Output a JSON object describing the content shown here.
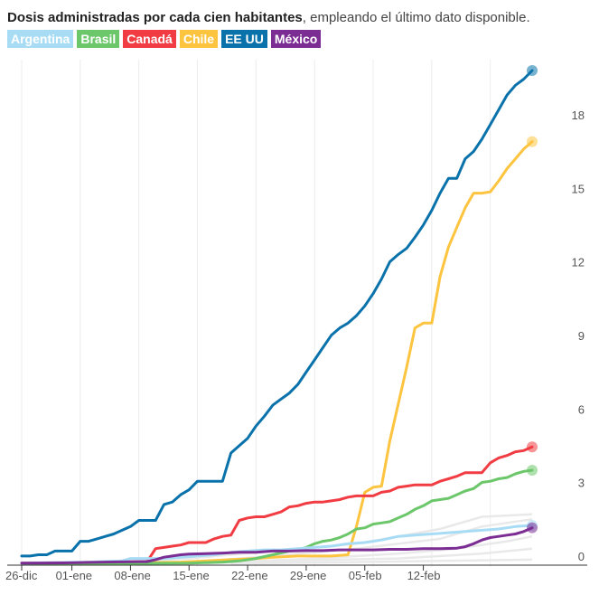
{
  "header": {
    "title": "Dosis administradas por cada cien habitantes",
    "subtitle": ", empleando el último dato disponible."
  },
  "legend": [
    {
      "name": "Argentina",
      "color": "#a8dcf5"
    },
    {
      "name": "Brasil",
      "color": "#6cc66a"
    },
    {
      "name": "Canadá",
      "color": "#f03c42"
    },
    {
      "name": "Chile",
      "color": "#fdc43f"
    },
    {
      "name": "EE UU",
      "color": "#0a72ab"
    },
    {
      "name": "México",
      "color": "#7b2d93"
    }
  ],
  "chart_data": {
    "type": "line",
    "x_ticks": [
      "26-dic",
      "01-ene",
      "08-ene",
      "15-ene",
      "22-ene",
      "29-ene",
      "05-feb",
      "12-feb"
    ],
    "x_tick_days": [
      0,
      6,
      13,
      20,
      27,
      34,
      41,
      48
    ],
    "ylim": [
      0,
      19.5
    ],
    "y_ticks": [
      "0",
      "3",
      "6",
      "9",
      "12",
      "15",
      "18"
    ],
    "y_tick_values": [
      0,
      3,
      6,
      9,
      12,
      15,
      18
    ],
    "grid": "vertical",
    "background_series_color": "#e9e9e9",
    "background_series": [
      [
        [
          10,
          0
        ],
        [
          20,
          0.2
        ],
        [
          30,
          0.5
        ],
        [
          40,
          0.8
        ],
        [
          50,
          1.4
        ],
        [
          55,
          1.9
        ],
        [
          61,
          2.0
        ]
      ],
      [
        [
          18,
          0
        ],
        [
          30,
          0.3
        ],
        [
          40,
          0.6
        ],
        [
          50,
          1.0
        ],
        [
          55,
          1.5
        ],
        [
          61,
          1.8
        ]
      ],
      [
        [
          22,
          0
        ],
        [
          35,
          0.2
        ],
        [
          45,
          0.4
        ],
        [
          52,
          0.6
        ],
        [
          58,
          0.9
        ],
        [
          61,
          1.1
        ]
      ],
      [
        [
          15,
          0
        ],
        [
          30,
          0.1
        ],
        [
          45,
          0.2
        ],
        [
          55,
          0.4
        ],
        [
          61,
          0.6
        ]
      ],
      [
        [
          25,
          0
        ],
        [
          40,
          0.05
        ],
        [
          50,
          0.1
        ],
        [
          61,
          0.15
        ]
      ]
    ],
    "series": [
      {
        "name": "EE UU",
        "color": "#0a72ab",
        "points": [
          [
            0,
            0.3
          ],
          [
            1,
            0.3
          ],
          [
            2,
            0.35
          ],
          [
            3,
            0.35
          ],
          [
            4,
            0.5
          ],
          [
            5,
            0.5
          ],
          [
            6,
            0.5
          ],
          [
            7,
            0.9
          ],
          [
            8,
            0.9
          ],
          [
            9,
            1.0
          ],
          [
            10,
            1.1
          ],
          [
            11,
            1.2
          ],
          [
            12,
            1.35
          ],
          [
            13,
            1.5
          ],
          [
            14,
            1.75
          ],
          [
            15,
            1.75
          ],
          [
            16,
            1.75
          ],
          [
            17,
            2.4
          ],
          [
            18,
            2.5
          ],
          [
            19,
            2.8
          ],
          [
            20,
            3.0
          ],
          [
            21,
            3.35
          ],
          [
            22,
            3.35
          ],
          [
            23,
            3.35
          ],
          [
            24,
            3.35
          ],
          [
            25,
            4.5
          ],
          [
            26,
            4.8
          ],
          [
            27,
            5.1
          ],
          [
            28,
            5.6
          ],
          [
            29,
            6.0
          ],
          [
            30,
            6.45
          ],
          [
            31,
            6.7
          ],
          [
            32,
            6.95
          ],
          [
            33,
            7.3
          ],
          [
            34,
            7.8
          ],
          [
            35,
            8.3
          ],
          [
            36,
            8.8
          ],
          [
            37,
            9.3
          ],
          [
            38,
            9.6
          ],
          [
            39,
            9.8
          ],
          [
            40,
            10.1
          ],
          [
            41,
            10.5
          ],
          [
            42,
            11.0
          ],
          [
            43,
            11.6
          ],
          [
            44,
            12.3
          ],
          [
            45,
            12.6
          ],
          [
            46,
            12.85
          ],
          [
            47,
            13.3
          ],
          [
            48,
            13.8
          ],
          [
            49,
            14.4
          ],
          [
            50,
            15.1
          ],
          [
            51,
            15.7
          ],
          [
            52,
            15.7
          ],
          [
            53,
            16.5
          ],
          [
            54,
            16.8
          ],
          [
            55,
            17.3
          ],
          [
            56,
            17.9
          ],
          [
            57,
            18.5
          ],
          [
            58,
            19.1
          ],
          [
            59,
            19.5
          ],
          [
            60,
            19.75
          ],
          [
            61,
            20.1
          ]
        ]
      },
      {
        "name": "Chile",
        "color": "#fdc43f",
        "points": [
          [
            0,
            0.01
          ],
          [
            5,
            0.02
          ],
          [
            10,
            0.03
          ],
          [
            15,
            0.03
          ],
          [
            19,
            0.05
          ],
          [
            22,
            0.1
          ],
          [
            25,
            0.15
          ],
          [
            28,
            0.2
          ],
          [
            30,
            0.25
          ],
          [
            33,
            0.3
          ],
          [
            35,
            0.3
          ],
          [
            37,
            0.3
          ],
          [
            39,
            0.35
          ],
          [
            40,
            1.5
          ],
          [
            41,
            2.9
          ],
          [
            42,
            3.1
          ],
          [
            43,
            3.15
          ],
          [
            44,
            5.0
          ],
          [
            45,
            6.5
          ],
          [
            46,
            8.0
          ],
          [
            47,
            9.6
          ],
          [
            48,
            9.8
          ],
          [
            49,
            9.8
          ],
          [
            50,
            11.7
          ],
          [
            51,
            12.9
          ],
          [
            52,
            13.7
          ],
          [
            53,
            14.5
          ],
          [
            54,
            15.1
          ],
          [
            55,
            15.1
          ],
          [
            56,
            15.15
          ],
          [
            57,
            15.6
          ],
          [
            58,
            16.1
          ],
          [
            59,
            16.5
          ],
          [
            60,
            16.9
          ],
          [
            61,
            17.2
          ]
        ]
      },
      {
        "name": "Canadá",
        "color": "#f03c42",
        "points": [
          [
            0,
            0.01
          ],
          [
            5,
            0.03
          ],
          [
            10,
            0.05
          ],
          [
            15,
            0.07
          ],
          [
            16,
            0.6
          ],
          [
            17,
            0.65
          ],
          [
            18,
            0.7
          ],
          [
            19,
            0.75
          ],
          [
            20,
            0.85
          ],
          [
            21,
            0.85
          ],
          [
            22,
            0.85
          ],
          [
            23,
            1.0
          ],
          [
            24,
            1.1
          ],
          [
            25,
            1.15
          ],
          [
            26,
            1.75
          ],
          [
            27,
            1.85
          ],
          [
            28,
            1.9
          ],
          [
            29,
            1.9
          ],
          [
            30,
            2.0
          ],
          [
            31,
            2.1
          ],
          [
            32,
            2.3
          ],
          [
            33,
            2.35
          ],
          [
            34,
            2.45
          ],
          [
            35,
            2.5
          ],
          [
            36,
            2.5
          ],
          [
            37,
            2.55
          ],
          [
            38,
            2.6
          ],
          [
            39,
            2.7
          ],
          [
            40,
            2.75
          ],
          [
            41,
            2.75
          ],
          [
            42,
            2.75
          ],
          [
            43,
            2.9
          ],
          [
            44,
            2.95
          ],
          [
            45,
            3.1
          ],
          [
            46,
            3.15
          ],
          [
            47,
            3.2
          ],
          [
            48,
            3.2
          ],
          [
            49,
            3.2
          ],
          [
            50,
            3.35
          ],
          [
            51,
            3.45
          ],
          [
            52,
            3.55
          ],
          [
            53,
            3.7
          ],
          [
            54,
            3.7
          ],
          [
            55,
            3.7
          ],
          [
            56,
            4.1
          ],
          [
            57,
            4.3
          ],
          [
            58,
            4.4
          ],
          [
            59,
            4.55
          ],
          [
            60,
            4.6
          ],
          [
            61,
            4.75
          ]
        ]
      },
      {
        "name": "Brasil",
        "color": "#6cc66a",
        "points": [
          [
            0,
            0
          ],
          [
            15,
            0
          ],
          [
            20,
            0.01
          ],
          [
            24,
            0.05
          ],
          [
            26,
            0.1
          ],
          [
            28,
            0.2
          ],
          [
            30,
            0.35
          ],
          [
            32,
            0.5
          ],
          [
            33,
            0.55
          ],
          [
            34,
            0.65
          ],
          [
            35,
            0.8
          ],
          [
            36,
            0.9
          ],
          [
            37,
            0.95
          ],
          [
            38,
            1.05
          ],
          [
            39,
            1.2
          ],
          [
            40,
            1.4
          ],
          [
            41,
            1.45
          ],
          [
            42,
            1.6
          ],
          [
            43,
            1.65
          ],
          [
            44,
            1.7
          ],
          [
            45,
            1.85
          ],
          [
            46,
            2.0
          ],
          [
            47,
            2.2
          ],
          [
            48,
            2.35
          ],
          [
            49,
            2.55
          ],
          [
            50,
            2.6
          ],
          [
            51,
            2.65
          ],
          [
            52,
            2.8
          ],
          [
            53,
            2.95
          ],
          [
            54,
            3.05
          ],
          [
            55,
            3.3
          ],
          [
            56,
            3.35
          ],
          [
            57,
            3.45
          ],
          [
            58,
            3.5
          ],
          [
            59,
            3.65
          ],
          [
            60,
            3.75
          ],
          [
            61,
            3.8
          ]
        ]
      },
      {
        "name": "Argentina",
        "color": "#a8dcf5",
        "points": [
          [
            0,
            0.01
          ],
          [
            8,
            0.05
          ],
          [
            12,
            0.1
          ],
          [
            13,
            0.2
          ],
          [
            15,
            0.2
          ],
          [
            17,
            0.2
          ],
          [
            19,
            0.25
          ],
          [
            21,
            0.3
          ],
          [
            23,
            0.35
          ],
          [
            25,
            0.45
          ],
          [
            27,
            0.5
          ],
          [
            29,
            0.55
          ],
          [
            31,
            0.55
          ],
          [
            33,
            0.6
          ],
          [
            35,
            0.65
          ],
          [
            37,
            0.7
          ],
          [
            39,
            0.8
          ],
          [
            41,
            0.85
          ],
          [
            43,
            0.95
          ],
          [
            45,
            1.1
          ],
          [
            47,
            1.15
          ],
          [
            49,
            1.2
          ],
          [
            51,
            1.25
          ],
          [
            53,
            1.3
          ],
          [
            55,
            1.35
          ],
          [
            57,
            1.4
          ],
          [
            59,
            1.5
          ],
          [
            61,
            1.55
          ]
        ]
      },
      {
        "name": "México",
        "color": "#7b2d93",
        "points": [
          [
            0,
            0.01
          ],
          [
            5,
            0.02
          ],
          [
            10,
            0.05
          ],
          [
            14,
            0.07
          ],
          [
            15,
            0.07
          ],
          [
            16,
            0.15
          ],
          [
            17,
            0.25
          ],
          [
            18,
            0.3
          ],
          [
            19,
            0.35
          ],
          [
            20,
            0.38
          ],
          [
            22,
            0.4
          ],
          [
            24,
            0.42
          ],
          [
            26,
            0.45
          ],
          [
            28,
            0.45
          ],
          [
            30,
            0.5
          ],
          [
            32,
            0.5
          ],
          [
            34,
            0.52
          ],
          [
            36,
            0.52
          ],
          [
            38,
            0.55
          ],
          [
            40,
            0.55
          ],
          [
            42,
            0.55
          ],
          [
            44,
            0.57
          ],
          [
            46,
            0.57
          ],
          [
            48,
            0.6
          ],
          [
            50,
            0.6
          ],
          [
            52,
            0.62
          ],
          [
            53,
            0.68
          ],
          [
            54,
            0.8
          ],
          [
            55,
            0.95
          ],
          [
            56,
            1.05
          ],
          [
            57,
            1.1
          ],
          [
            58,
            1.15
          ],
          [
            59,
            1.2
          ],
          [
            60,
            1.3
          ],
          [
            61,
            1.45
          ]
        ]
      }
    ]
  }
}
